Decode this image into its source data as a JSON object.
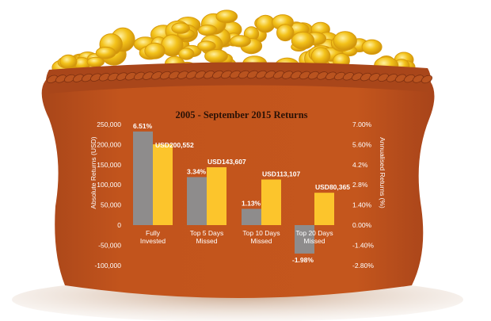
{
  "colors": {
    "sack": "#c2541c",
    "sack_dark": "#8a3312",
    "rim": "#a8471a",
    "coin": "#f3c21a",
    "coin_dark": "#d79a0c",
    "ground": "#c9a58a",
    "usd_bar": "#fcc52c",
    "return_bar": "#8e8c8c",
    "text_light": "#ffffff",
    "title_text": "#2b1206"
  },
  "chart_data": {
    "type": "bar",
    "title": "2005 - September 2015 Returns",
    "ylabel": "Absolute Returns (USD)",
    "y2label": "Annualised Returns (%)",
    "ylim": [
      -100000,
      250000
    ],
    "y2lim": [
      -2.8,
      7.0
    ],
    "yticks": [
      "250,000",
      "200,000",
      "150,000",
      "100,000",
      "50,000",
      "0",
      "-50,000",
      "-100,000"
    ],
    "yticks_values": [
      250000,
      200000,
      150000,
      100000,
      50000,
      0,
      -50000,
      -100000
    ],
    "y2ticks": [
      "7.00%",
      "5.60%",
      "4.2%",
      "2.8%",
      "1.40%",
      "0.00%",
      "-1.40%",
      "-2.80%"
    ],
    "categories": [
      [
        "Fully",
        "Invested"
      ],
      [
        "Top 5 Days",
        "Missed"
      ],
      [
        "Top 10 Days",
        "Missed"
      ],
      [
        "Top 20 Days",
        "Missed"
      ]
    ],
    "series": [
      {
        "axis": "right",
        "values": [
          6.51,
          3.34,
          1.13,
          -1.98
        ],
        "labels": [
          "6.51%",
          "3.34%",
          "1.13%",
          "-1.98%"
        ]
      },
      {
        "axis": "left",
        "values": [
          200552,
          143607,
          113107,
          80365
        ],
        "labels": [
          "USD200,552",
          "USD143,607",
          "USD113,107",
          "USD80,365"
        ]
      }
    ],
    "grid": false,
    "legend": "none"
  }
}
